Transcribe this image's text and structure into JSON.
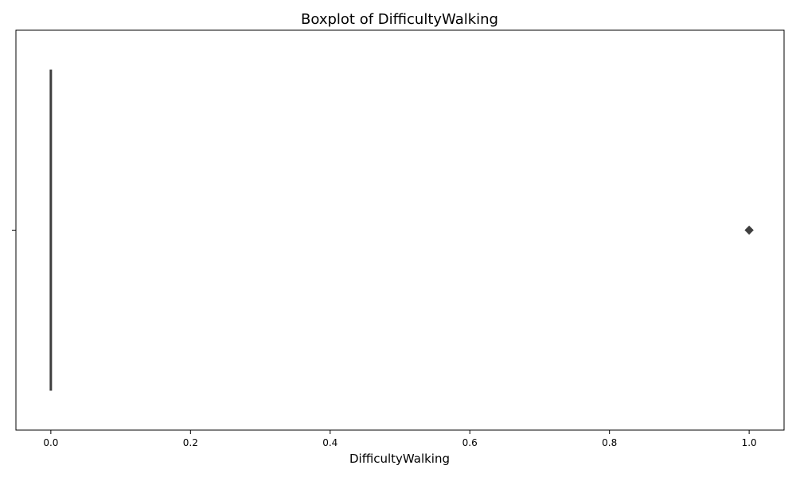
{
  "chart_data": {
    "type": "boxplot",
    "title": "Boxplot of DifficultyWalking",
    "xlabel": "DifficultyWalking",
    "ylabel": "",
    "xlim": [
      -0.05,
      1.05
    ],
    "x_ticks": [
      0.0,
      0.2,
      0.4,
      0.6,
      0.8,
      1.0
    ],
    "x_tick_labels": [
      "0.0",
      "0.2",
      "0.4",
      "0.6",
      "0.8",
      "1.0"
    ],
    "y_tick_labels": [
      ""
    ],
    "grid": false,
    "box": {
      "min": 0.0,
      "q1": 0.0,
      "median": 0.0,
      "q3": 0.0,
      "max": 0.0,
      "outliers": [
        1.0
      ]
    },
    "colors": {
      "box": "#3f3f3f",
      "outlier": "#3f3f3f",
      "axes": "#000000"
    }
  }
}
